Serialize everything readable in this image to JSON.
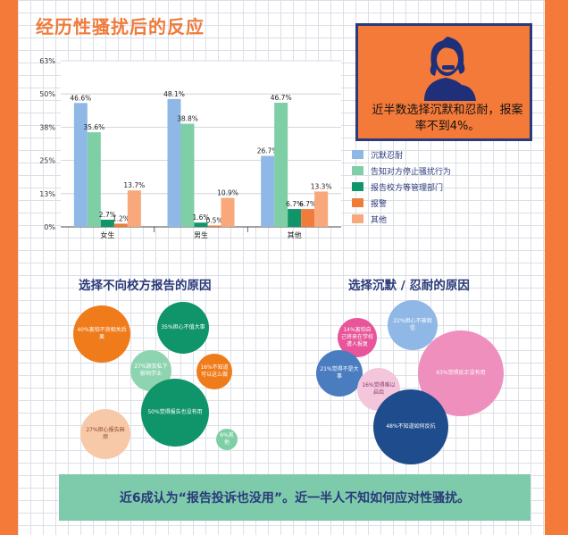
{
  "title": "经历性骚扰后的反应",
  "callout": {
    "text": "近半数选择沉默和忍耐，报案率不到4%。",
    "icon": "silence-person-icon",
    "bg": "#f47a3a"
  },
  "chart_data": {
    "type": "bar",
    "categories": [
      "女生",
      "男生",
      "其他"
    ],
    "yticks": [
      "0%",
      "13%",
      "25%",
      "38%",
      "50%",
      "63%"
    ],
    "ylim": [
      0,
      62.5
    ],
    "grid": true,
    "legend_position": "right",
    "series": [
      {
        "name": "沉默忍耐",
        "color": "#8fb8e6",
        "values": [
          46.6,
          48.1,
          26.7
        ],
        "labels": [
          "46.6%",
          "48.1%",
          "26.7%"
        ]
      },
      {
        "name": "告知对方停止骚扰行为",
        "color": "#7ecfa6",
        "values": [
          35.6,
          38.8,
          46.7
        ],
        "labels": [
          "35.6%",
          "38.8%",
          "46.7%"
        ]
      },
      {
        "name": "报告校方等管理部门",
        "color": "#10946a",
        "values": [
          2.7,
          1.6,
          6.7
        ],
        "labels": [
          "2.7%",
          "1.6%",
          "6.7%"
        ]
      },
      {
        "name": "报警",
        "color": "#f07b3a",
        "values": [
          1.2,
          0.5,
          6.7
        ],
        "labels": [
          "1.2%",
          "0.5%",
          "6.7%"
        ]
      },
      {
        "name": "其他",
        "color": "#f8a87a",
        "values": [
          13.7,
          10.9,
          13.3
        ],
        "labels": [
          "13.7%",
          "10.9%",
          "13.3%"
        ]
      }
    ]
  },
  "report_reasons": {
    "title": "选择不向校方报告的原因",
    "bubbles": [
      {
        "text": "40%害怕不良相关后果",
        "color": "#f07b1a"
      },
      {
        "text": "35%担心不值大事",
        "color": "#10946a"
      },
      {
        "text": "27%顾及私下影响学业",
        "color": "#8fd4b0"
      },
      {
        "text": "16%不知道可以这么做",
        "color": "#f07b1a"
      },
      {
        "text": "50%觉得报告也没有用",
        "color": "#10946a"
      },
      {
        "text": "27%担心报告麻烦",
        "color": "#f8c9a8"
      },
      {
        "text": "6%其他",
        "color": "#7ecfa6"
      }
    ]
  },
  "silence_reasons": {
    "title": "选择沉默 / 忍耐的原因",
    "bubbles": [
      {
        "text": "14%害怕自己将来在学校遭人报复",
        "color": "#e8559a"
      },
      {
        "text": "22%担心不被相信",
        "color": "#8fb8e6"
      },
      {
        "text": "21%觉得不是大事",
        "color": "#4a7cc0"
      },
      {
        "text": "16%觉得难以启齿",
        "color": "#f3c6dc"
      },
      {
        "text": "63%觉得反正没有用",
        "color": "#ee8fbe"
      },
      {
        "text": "48%不知道如何反抗",
        "color": "#1f4c8c"
      }
    ]
  },
  "banner": {
    "text": "近6成认为“报告投诉也没用”。近一半人不知如何应对性骚扰。"
  }
}
